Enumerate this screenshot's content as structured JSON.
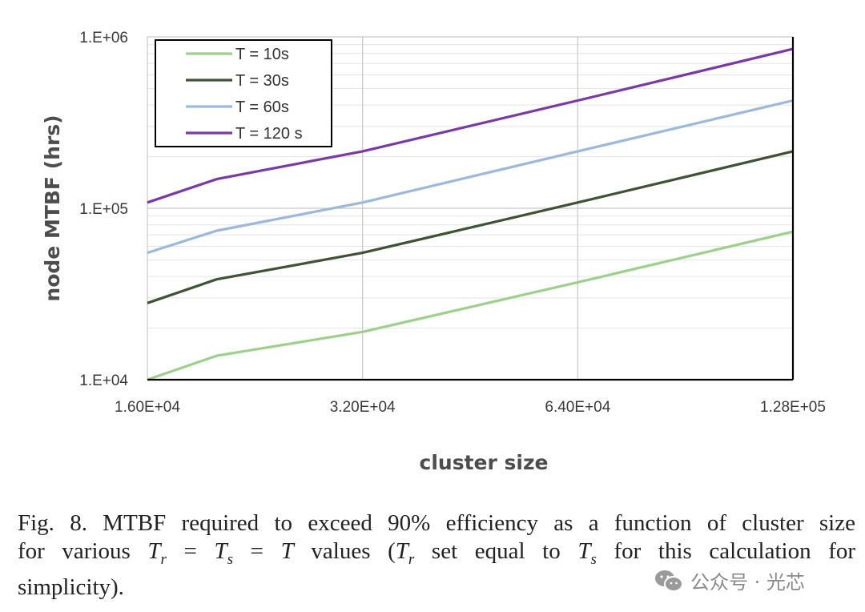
{
  "chart_data": {
    "type": "line",
    "xscale": "log2",
    "yscale": "log10",
    "x": [
      16000,
      20000,
      32000,
      64000,
      128000
    ],
    "xticks": [
      16000,
      32000,
      64000,
      128000
    ],
    "xtick_labels": [
      "1.60E+04",
      "3.20E+04",
      "6.40E+04",
      "1.28E+05"
    ],
    "xlim": [
      16000,
      128000
    ],
    "yticks": [
      10000,
      100000,
      1000000
    ],
    "ytick_labels": [
      "1.E+04",
      "1.E+05",
      "1.E+06"
    ],
    "ylim": [
      10000,
      1000000
    ],
    "xlabel": "cluster size",
    "ylabel": "node MTBF (hrs)",
    "grid": true,
    "legend_position": "top-left",
    "series": [
      {
        "name": "T = 10s",
        "color": "#9dd18b",
        "values": [
          10000,
          13800,
          19000,
          37000,
          73000
        ]
      },
      {
        "name": "T = 30s",
        "color": "#3e5234",
        "values": [
          28000,
          38500,
          55000,
          108000,
          215000
        ]
      },
      {
        "name": "T = 60s",
        "color": "#9cb8dc",
        "values": [
          55000,
          74000,
          108000,
          215000,
          425000
        ]
      },
      {
        "name": "T = 120 s",
        "color": "#7a39a6",
        "values": [
          108000,
          148000,
          215000,
          425000,
          850000
        ]
      }
    ]
  },
  "caption": {
    "line1": "Fig. 8.     MTBF required to exceed 90% efficiency as a function of cluster size",
    "line2_a": "for various ",
    "line2_b": " values (",
    "line2_c": " set equal to ",
    "line2_d": " for this calculation for",
    "line3": "simplicity).",
    "T": "T",
    "r": "r",
    "s": "s",
    "eq": " = "
  },
  "watermark": {
    "icon": "wechat-icon",
    "text": "公众号 · 光芯"
  }
}
